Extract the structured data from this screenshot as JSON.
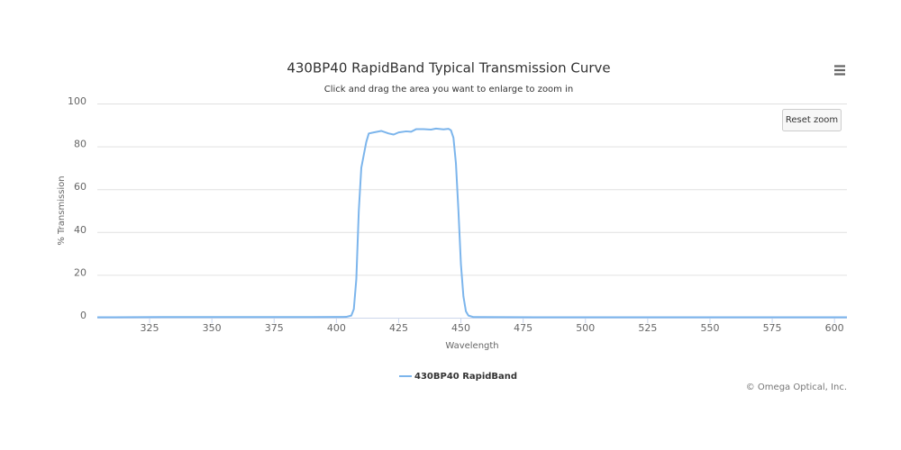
{
  "chart_data": {
    "type": "line",
    "title": "430BP40 RapidBand Typical Transmission Curve",
    "subtitle": "Click and drag the area you want to enlarge to zoom in",
    "x_label": "Wavelength",
    "y_label": "% Transmission",
    "reset_zoom": "Reset zoom",
    "credits": "© Omega Optical, Inc.",
    "xlim": [
      304,
      605
    ],
    "ylim": [
      0,
      100
    ],
    "xticks": [
      325,
      350,
      375,
      400,
      425,
      450,
      475,
      500,
      525,
      550,
      575,
      600
    ],
    "yticks": [
      0,
      20,
      40,
      60,
      80,
      100
    ],
    "grid": true,
    "legend": "bottom",
    "x": [
      304,
      330,
      360,
      390,
      404,
      406,
      407,
      408,
      409,
      410,
      411,
      412,
      413,
      415,
      418,
      421,
      423,
      425,
      428,
      430,
      432,
      435,
      438,
      440,
      443,
      445,
      446,
      447,
      448,
      449,
      450,
      451,
      452,
      453,
      455,
      480,
      520,
      560,
      605
    ],
    "series": [
      {
        "name": "430BP40 RapidBand",
        "color": "#7cb5ec",
        "values": [
          0.2,
          0.3,
          0.3,
          0.3,
          0.4,
          1,
          4,
          18,
          50,
          70,
          76,
          82,
          86,
          86.5,
          87.2,
          86,
          85.5,
          86.5,
          87,
          86.8,
          88,
          88,
          87.8,
          88.3,
          87.9,
          88.2,
          87.5,
          84,
          72,
          50,
          25,
          10,
          3,
          1,
          0.3,
          0.2,
          0.2,
          0.2,
          0.2
        ]
      }
    ]
  }
}
